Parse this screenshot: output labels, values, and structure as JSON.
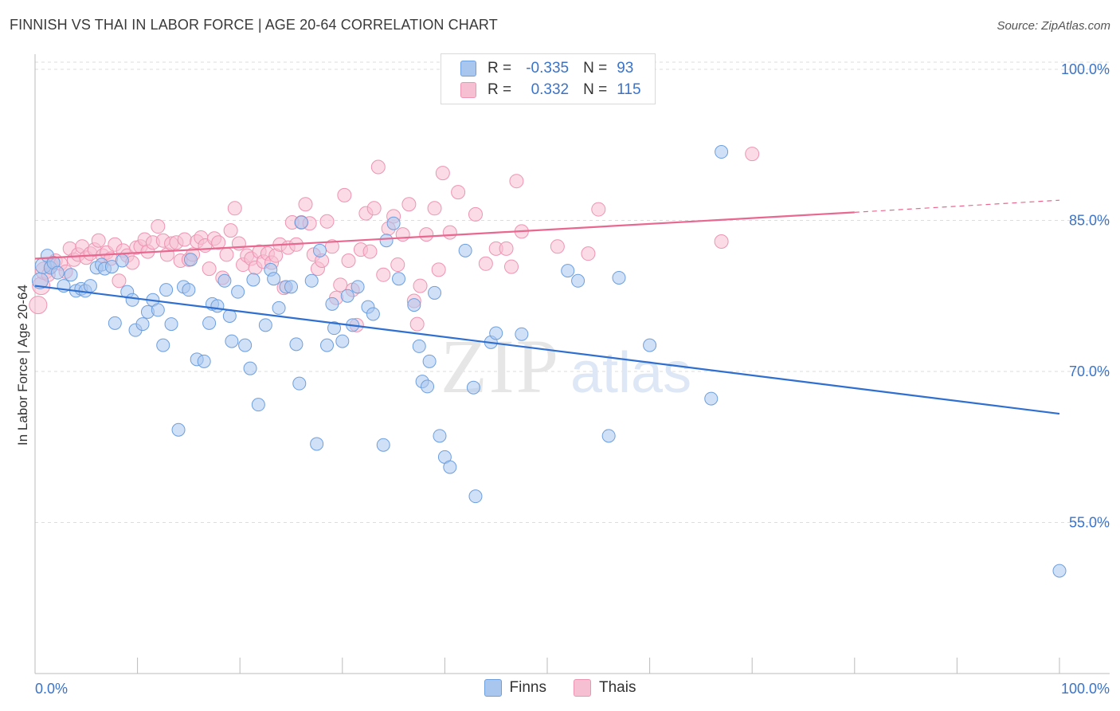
{
  "header": {
    "title": "FINNISH VS THAI IN LABOR FORCE | AGE 20-64 CORRELATION CHART",
    "source": "Source: ZipAtlas.com"
  },
  "watermark": {
    "zip": "ZIP",
    "atlas": "atlas"
  },
  "legend": {
    "finns": {
      "r_label": "R =",
      "r_value": "-0.335",
      "n_label": "N =",
      "n_value": "93"
    },
    "thais": {
      "r_label": "R =",
      "r_value": "0.332",
      "n_label": "N =",
      "n_value": "115"
    }
  },
  "bottom_legend": {
    "finns": "Finns",
    "thais": "Thais"
  },
  "colors": {
    "finns_fill": "#a9c6ee",
    "finns_stroke": "#6d9fde",
    "finns_line": "#2f6fd0",
    "thais_fill": "#f7bfd2",
    "thais_stroke": "#ee94b3",
    "thais_line": "#e8688f",
    "axis_text": "#3b73c8",
    "grid": "#dddddd"
  },
  "chart_data": {
    "type": "scatter",
    "title": "FINNISH VS THAI IN LABOR FORCE | AGE 20-64 CORRELATION CHART",
    "xlabel": "",
    "ylabel": "In Labor Force | Age 20-64",
    "x_tick_labels": [
      "0.0%",
      "100.0%"
    ],
    "y_tick_labels": [
      "55.0%",
      "70.0%",
      "85.0%",
      "100.0%"
    ],
    "y_ticks": [
      55,
      70,
      85,
      100
    ],
    "xlim": [
      0,
      100
    ],
    "ylim": [
      40,
      101.5
    ],
    "grid": true,
    "legend_position": "top-center",
    "series": [
      {
        "name": "Finns",
        "r": -0.335,
        "n": 93,
        "trend": {
          "x": [
            0,
            100
          ],
          "y": [
            78.5,
            65.8
          ]
        },
        "points": [
          [
            0.5,
            79
          ],
          [
            0.8,
            80.5
          ],
          [
            1.2,
            81.5
          ],
          [
            1.5,
            80.3
          ],
          [
            1.8,
            80.8
          ],
          [
            2.2,
            79.8
          ],
          [
            2.8,
            78.5
          ],
          [
            3.5,
            79.6
          ],
          [
            4,
            78
          ],
          [
            4.5,
            78.2
          ],
          [
            4.9,
            78
          ],
          [
            5.4,
            78.5
          ],
          [
            6,
            80.3
          ],
          [
            6.5,
            80.6
          ],
          [
            6.8,
            80.2
          ],
          [
            7.5,
            80.4
          ],
          [
            7.8,
            74.8
          ],
          [
            8.5,
            81
          ],
          [
            9,
            77.9
          ],
          [
            9.5,
            77.1
          ],
          [
            9.8,
            74.1
          ],
          [
            10.5,
            74.7
          ],
          [
            11,
            75.9
          ],
          [
            11.5,
            77.1
          ],
          [
            12,
            76.1
          ],
          [
            12.5,
            72.6
          ],
          [
            12.8,
            78.1
          ],
          [
            13.3,
            74.7
          ],
          [
            14,
            64.2
          ],
          [
            14.5,
            78.4
          ],
          [
            15,
            78.1
          ],
          [
            15.2,
            81.1
          ],
          [
            15.8,
            71.2
          ],
          [
            16.5,
            71
          ],
          [
            17,
            74.8
          ],
          [
            17.3,
            76.7
          ],
          [
            17.8,
            76.5
          ],
          [
            18.5,
            79
          ],
          [
            19,
            75.5
          ],
          [
            19.2,
            73
          ],
          [
            19.8,
            77.9
          ],
          [
            20.5,
            72.6
          ],
          [
            21,
            70.3
          ],
          [
            21.3,
            79.1
          ],
          [
            21.8,
            66.7
          ],
          [
            22.5,
            74.6
          ],
          [
            23,
            80.1
          ],
          [
            23.3,
            79.2
          ],
          [
            23.8,
            76.3
          ],
          [
            24.5,
            78.4
          ],
          [
            25,
            78.4
          ],
          [
            25.5,
            72.7
          ],
          [
            25.8,
            68.8
          ],
          [
            26,
            84.8
          ],
          [
            27,
            79
          ],
          [
            27.5,
            62.8
          ],
          [
            27.8,
            82
          ],
          [
            28.5,
            72.6
          ],
          [
            29,
            76.7
          ],
          [
            29.2,
            74.3
          ],
          [
            30,
            73
          ],
          [
            30.5,
            77.5
          ],
          [
            31,
            74.6
          ],
          [
            31.5,
            78.4
          ],
          [
            32.5,
            76.4
          ],
          [
            33,
            75.7
          ],
          [
            34,
            62.7
          ],
          [
            34.3,
            83
          ],
          [
            35,
            84.7
          ],
          [
            35.5,
            79.2
          ],
          [
            37,
            76.6
          ],
          [
            37.5,
            72.5
          ],
          [
            37.8,
            69
          ],
          [
            38.3,
            68.5
          ],
          [
            38.5,
            71
          ],
          [
            39,
            77.8
          ],
          [
            39.5,
            63.6
          ],
          [
            40,
            61.5
          ],
          [
            40.5,
            60.5
          ],
          [
            42,
            82
          ],
          [
            42.8,
            68.4
          ],
          [
            43,
            57.6
          ],
          [
            44.5,
            72.9
          ],
          [
            45,
            73.8
          ],
          [
            46.8,
            100.2
          ],
          [
            47.5,
            73.7
          ],
          [
            52,
            80
          ],
          [
            53,
            79
          ],
          [
            56,
            63.6
          ],
          [
            57,
            79.3
          ],
          [
            60,
            72.6
          ],
          [
            66,
            67.3
          ],
          [
            67,
            91.8
          ],
          [
            100,
            50.2
          ]
        ]
      },
      {
        "name": "Thais",
        "r": 0.332,
        "n": 115,
        "trend": {
          "x": [
            0,
            80,
            100
          ],
          "y": [
            81.2,
            85.8,
            87.0
          ]
        },
        "points": [
          [
            0.3,
            76.6
          ],
          [
            0.6,
            78.5
          ],
          [
            0.9,
            80
          ],
          [
            1.3,
            79.6
          ],
          [
            1.6,
            80.5
          ],
          [
            2,
            81
          ],
          [
            2.5,
            80.7
          ],
          [
            3,
            79.9
          ],
          [
            3.4,
            82.2
          ],
          [
            3.8,
            81.1
          ],
          [
            4.2,
            81.6
          ],
          [
            4.6,
            82.4
          ],
          [
            5,
            81.3
          ],
          [
            5.4,
            81.7
          ],
          [
            5.8,
            82.1
          ],
          [
            6.2,
            83
          ],
          [
            6.6,
            81.5
          ],
          [
            7,
            81.8
          ],
          [
            7.4,
            81.2
          ],
          [
            7.8,
            82.6
          ],
          [
            8.2,
            79
          ],
          [
            8.6,
            82
          ],
          [
            9,
            81.5
          ],
          [
            9.5,
            80.8
          ],
          [
            9.9,
            82.3
          ],
          [
            10.3,
            82.4
          ],
          [
            10.7,
            83.1
          ],
          [
            11,
            81.9
          ],
          [
            11.5,
            82.8
          ],
          [
            12,
            84.4
          ],
          [
            12.5,
            83
          ],
          [
            12.9,
            81.6
          ],
          [
            13.3,
            82.7
          ],
          [
            13.8,
            82.8
          ],
          [
            14.2,
            81
          ],
          [
            14.6,
            83.1
          ],
          [
            15,
            81.1
          ],
          [
            15.4,
            81.6
          ],
          [
            15.8,
            82.9
          ],
          [
            16.2,
            83.3
          ],
          [
            16.6,
            82.5
          ],
          [
            17,
            80.2
          ],
          [
            17.5,
            83.2
          ],
          [
            17.9,
            82.8
          ],
          [
            18.3,
            79.3
          ],
          [
            18.7,
            81.6
          ],
          [
            19.1,
            84
          ],
          [
            19.5,
            86.2
          ],
          [
            19.9,
            82.7
          ],
          [
            20.3,
            80.6
          ],
          [
            20.7,
            81.5
          ],
          [
            21.1,
            81.2
          ],
          [
            21.5,
            80.3
          ],
          [
            21.9,
            81.9
          ],
          [
            22.3,
            80.9
          ],
          [
            22.7,
            81.7
          ],
          [
            23.1,
            80.8
          ],
          [
            23.5,
            81.5
          ],
          [
            23.9,
            82.6
          ],
          [
            24.3,
            78.3
          ],
          [
            24.7,
            82.3
          ],
          [
            25.1,
            84.8
          ],
          [
            25.5,
            82.6
          ],
          [
            26,
            84.8
          ],
          [
            26.4,
            86.6
          ],
          [
            26.8,
            84.7
          ],
          [
            27.2,
            81.6
          ],
          [
            27.6,
            80.2
          ],
          [
            28,
            81
          ],
          [
            28.5,
            84.9
          ],
          [
            29,
            82.4
          ],
          [
            29.4,
            77.3
          ],
          [
            29.8,
            78.6
          ],
          [
            30.2,
            87.5
          ],
          [
            30.6,
            81
          ],
          [
            31,
            78.1
          ],
          [
            31.4,
            74.6
          ],
          [
            31.8,
            82.1
          ],
          [
            32.3,
            85.7
          ],
          [
            32.7,
            81.9
          ],
          [
            33.1,
            86.2
          ],
          [
            33.5,
            90.3
          ],
          [
            34,
            79.6
          ],
          [
            34.5,
            84.2
          ],
          [
            35,
            85.4
          ],
          [
            35.4,
            80.6
          ],
          [
            35.9,
            83.6
          ],
          [
            36.5,
            86.6
          ],
          [
            37,
            77
          ],
          [
            37.3,
            74.7
          ],
          [
            37.6,
            78.5
          ],
          [
            38.2,
            83.6
          ],
          [
            39,
            86.2
          ],
          [
            39.4,
            80.1
          ],
          [
            39.8,
            89.7
          ],
          [
            40.5,
            83.8
          ],
          [
            41.3,
            87.8
          ],
          [
            43,
            85.6
          ],
          [
            44,
            80.7
          ],
          [
            45,
            82.2
          ],
          [
            46,
            82.2
          ],
          [
            46.5,
            80.4
          ],
          [
            47,
            88.9
          ],
          [
            47.5,
            83.9
          ],
          [
            51,
            82.4
          ],
          [
            54,
            81.7
          ],
          [
            55,
            86.1
          ],
          [
            67,
            82.9
          ],
          [
            70,
            91.6
          ]
        ]
      }
    ]
  }
}
